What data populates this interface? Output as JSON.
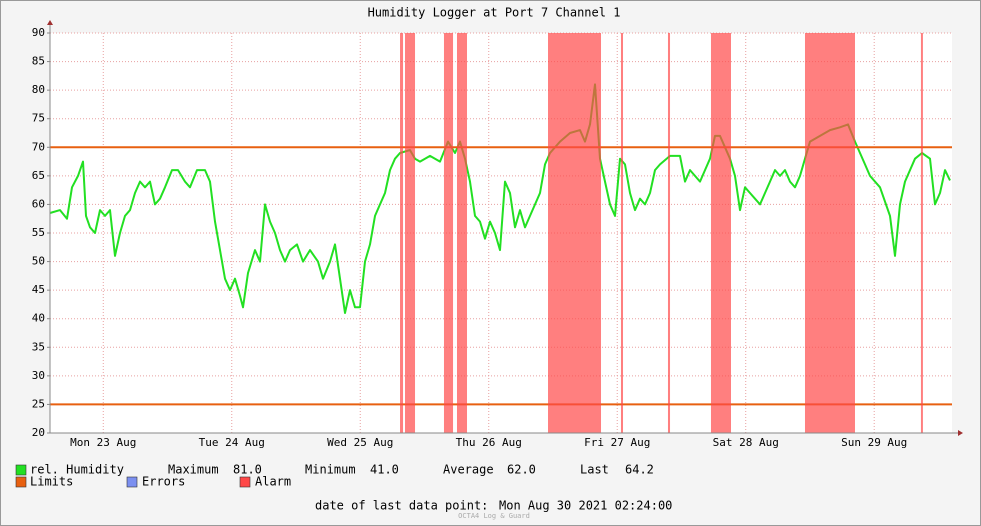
{
  "chart_data": {
    "type": "line",
    "title": "Humidity Logger at Port 7 Channel 1",
    "x": [
      2.05,
      3.92,
      5.23,
      6.16,
      7.28,
      8.22,
      8.78,
      9.53,
      10.46,
      11.39,
      12.33,
      13.26,
      14.2,
      15.13,
      16.06,
      17.0,
      17.93,
      18.86,
      19.8,
      20.73,
      21.67,
      22.6,
      23.53,
      24.84,
      25.96,
      27.27,
      28.2,
      29.51,
      31.0,
      31.94,
      32.87,
      33.81,
      34.74,
      35.67,
      36.61,
      37.54,
      38.1,
      39.04,
      40.34,
      41.28,
      42.21,
      43.15,
      44.08,
      45.01,
      45.95,
      46.88,
      48.19,
      49.31,
      50.62,
      52.11,
      53.04,
      54.35,
      55.29,
      56.22,
      57.15,
      58.09,
      59.02,
      59.96,
      60.89,
      61.82,
      62.76,
      63.69,
      64.62,
      65.56,
      66.49,
      67.43,
      69.29,
      70.23,
      71.16,
      73.03,
      74.9,
      76.39,
      77.7,
      78.63,
      79.57,
      80.5,
      81.43,
      82.37,
      83.3,
      84.24,
      85.17,
      86.1,
      87.04,
      87.97,
      88.91,
      89.84,
      90.77,
      91.71,
      93.57,
      94.51,
      95.44,
      97.31,
      99.18,
      101.05,
      101.98,
      102.91,
      103.85,
      104.78,
      105.72,
      106.65,
      107.58,
      108.52,
      109.45,
      110.38,
      111.32,
      112.25,
      113.19,
      114.12,
      115.05,
      115.99,
      117.86,
      119.72,
      120.66,
      121.59,
      123.46,
      124.39,
      125.33,
      126.26,
      127.2,
      128.13,
      129.06,
      130.0,
      130.93,
      131.86,
      132.8,
      133.73,
      134.67,
      135.6,
      136.53,
      137.47,
      138.4,
      139.34,
      140.27,
      141.2,
      142.14,
      143.07,
      144.01,
      145.87,
      147.74,
      149.61,
      151.1,
      152.41,
      153.34,
      154.28,
      155.21,
      157.08,
      158.95,
      159.88,
      160.81,
      161.75,
      162.68,
      163.62,
      164.92,
      166.42,
      167.35,
      168.29,
      169.22,
      170.16
    ],
    "series": [
      {
        "name": "rel. Humidity",
        "color": "#22e022",
        "values": [
          58.5,
          59,
          57.5,
          63,
          65,
          67.5,
          58,
          56,
          55,
          59,
          58,
          59,
          51,
          55,
          58,
          59,
          62,
          64,
          63,
          64,
          60,
          61,
          63,
          66,
          66,
          64,
          63,
          66,
          66,
          64,
          57,
          52,
          47,
          45,
          47,
          44,
          42,
          48,
          52,
          50,
          60,
          57,
          55,
          52,
          50,
          52,
          53,
          50,
          52,
          50,
          47,
          50,
          53,
          47,
          41,
          45,
          42,
          42,
          50,
          53,
          58,
          60,
          62,
          66,
          68,
          69,
          69.5,
          68,
          67.5,
          68.5,
          67.5,
          71,
          69,
          71,
          68,
          64,
          58,
          57,
          54,
          57,
          55,
          52,
          64,
          62,
          56,
          59,
          56,
          58,
          62,
          67,
          69,
          71,
          72.5,
          73,
          71,
          74,
          81,
          68,
          64,
          60,
          58,
          68,
          67,
          62,
          59,
          61,
          60,
          62,
          66,
          67,
          68.5,
          68.5,
          64,
          66,
          64,
          66,
          68,
          72,
          72,
          70,
          68,
          65,
          59,
          63,
          62,
          61,
          60,
          62,
          64,
          66,
          65,
          66,
          64,
          63,
          65,
          68,
          71,
          72,
          73,
          73.5,
          74,
          71,
          69,
          67,
          65,
          63,
          58,
          51,
          60,
          64,
          66,
          68,
          69,
          68,
          60,
          62,
          66,
          64.2
        ]
      }
    ],
    "xlim": [
      2.05,
      170.53
    ],
    "xticks": [
      {
        "value": 12,
        "label": "Mon 23 Aug"
      },
      {
        "value": 36,
        "label": "Tue 24 Aug"
      },
      {
        "value": 60,
        "label": "Wed 25 Aug"
      },
      {
        "value": 84,
        "label": "Thu 26 Aug"
      },
      {
        "value": 108,
        "label": "Fri 27 Aug"
      },
      {
        "value": 132,
        "label": "Sat 28 Aug"
      },
      {
        "value": 156,
        "label": "Sun 29 Aug"
      }
    ],
    "ylim": [
      20,
      90
    ],
    "yticks": [
      20,
      25,
      30,
      35,
      40,
      45,
      50,
      55,
      60,
      65,
      70,
      75,
      80,
      85,
      90
    ],
    "grid": true,
    "limits": {
      "name": "Limits",
      "color": "#e86010",
      "values": [
        25,
        70
      ]
    },
    "errors": {
      "name": "Errors",
      "color": "#7b8ff0"
    },
    "alarm": {
      "name": "Alarm",
      "color": "#ff4848",
      "periods": [
        [
          67.43,
          67.99
        ],
        [
          68.36,
          70.23
        ],
        [
          75.64,
          77.33
        ],
        [
          78.07,
          79.94
        ],
        [
          95.07,
          104.97
        ],
        [
          108.7,
          109.08
        ],
        [
          117.48,
          117.86
        ],
        [
          125.51,
          129.25
        ],
        [
          143.07,
          152.41
        ],
        [
          164.73,
          165.1
        ]
      ]
    },
    "stats": [
      {
        "label": "Maximum",
        "value": "81.0"
      },
      {
        "label": "Minimum",
        "value": "41.0"
      },
      {
        "label": "Average",
        "value": "62.0"
      },
      {
        "label": "Last",
        "value": "64.2"
      }
    ],
    "footer": {
      "label": "date of last data point:",
      "date": "Mon Aug 30 2021 02:24:00",
      "credit": "OCTA4 Log & Guard"
    }
  }
}
